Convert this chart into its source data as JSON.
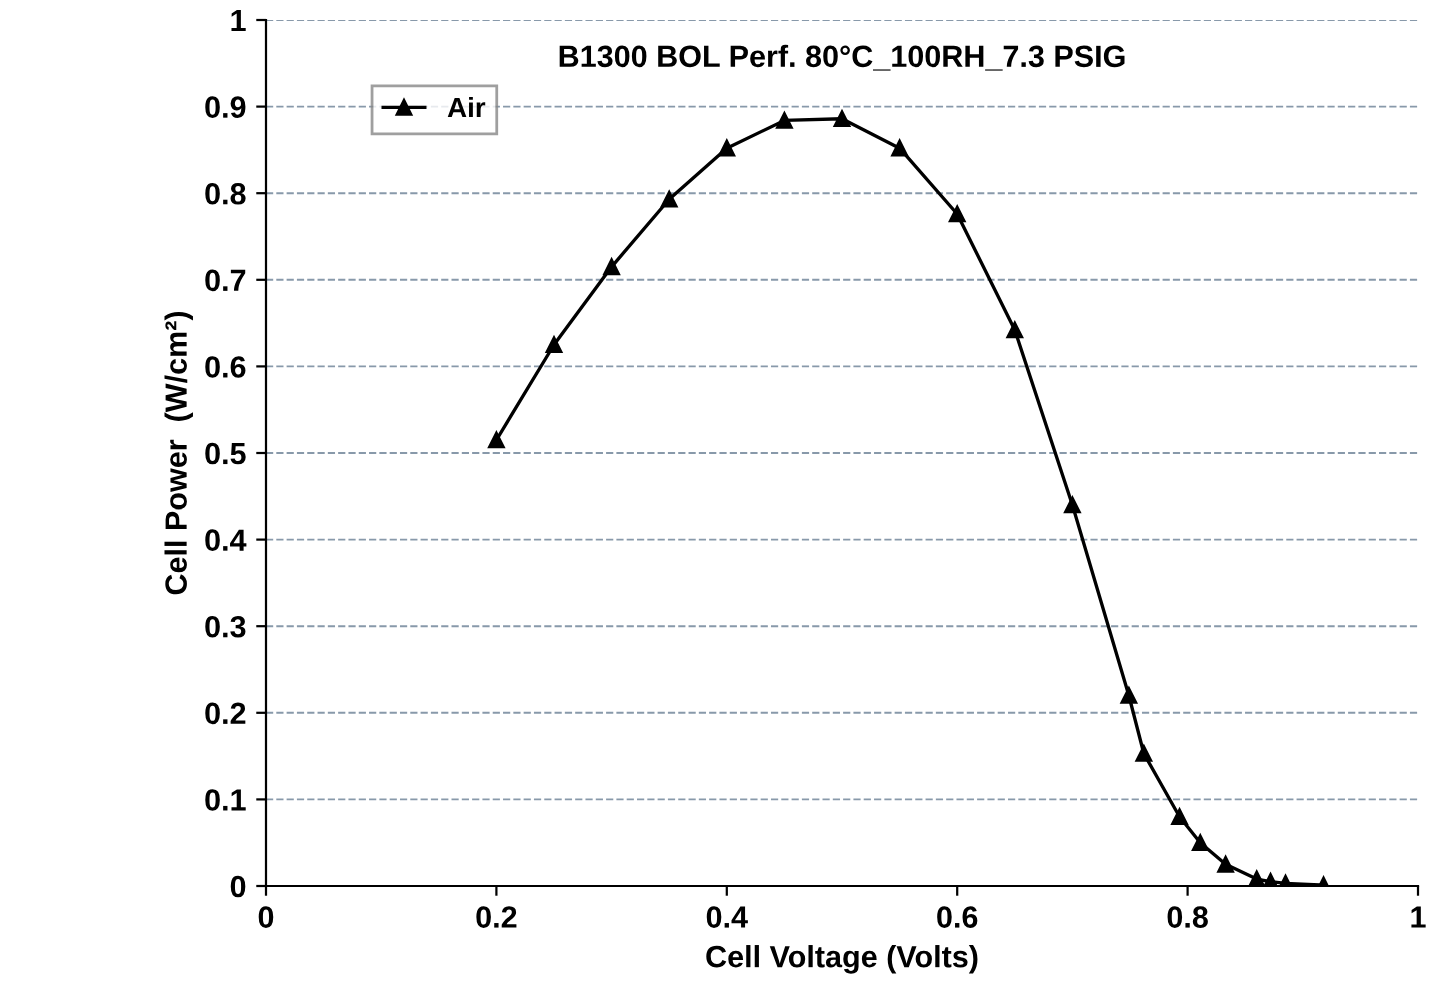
{
  "chart_data": {
    "type": "line",
    "title": "B1300 BOL Perf. 80°C_100RH_7.3 PSIG",
    "xlabel": "Cell Voltage (Volts)",
    "ylabel": "Cell Power  (W/cm²)",
    "x": [
      0.2,
      0.25,
      0.3,
      0.35,
      0.4,
      0.45,
      0.5,
      0.55,
      0.6,
      0.65,
      0.7,
      0.749,
      0.762,
      0.793,
      0.811,
      0.833,
      0.86,
      0.872,
      0.885,
      0.918
    ],
    "series": [
      {
        "name": "Air",
        "color": "#000000",
        "values": [
          0.515,
          0.625,
          0.715,
          0.793,
          0.852,
          0.884,
          0.886,
          0.852,
          0.776,
          0.642,
          0.44,
          0.22,
          0.153,
          0.08,
          0.05,
          0.025,
          0.008,
          0.005,
          0.003,
          0.001
        ]
      }
    ],
    "xlim": [
      0,
      1
    ],
    "xticks": [
      0,
      0.2,
      0.4,
      0.6,
      0.8,
      1
    ],
    "ylim": [
      0,
      1
    ],
    "yticks": [
      0,
      0.1,
      0.2,
      0.3,
      0.4,
      0.5,
      0.6,
      0.7,
      0.8,
      0.9,
      1
    ],
    "grid": "y",
    "legend": "top left",
    "marker": "triangle",
    "line_style": "solid"
  }
}
